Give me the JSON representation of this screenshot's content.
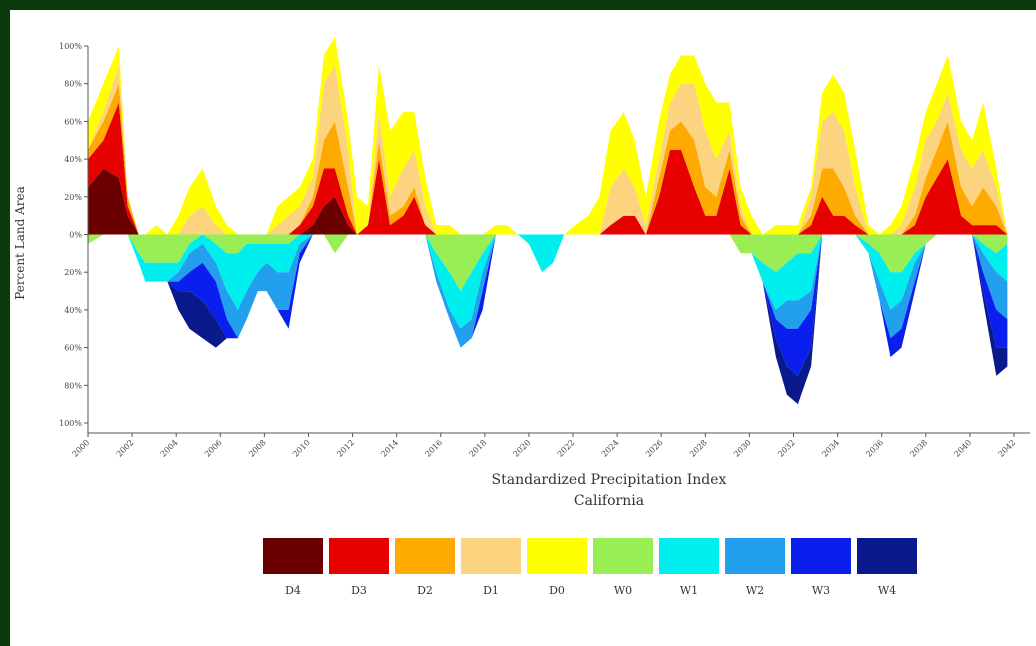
{
  "chart_data": {
    "type": "area",
    "title": "Standardized Precipitation Index",
    "subtitle": "California",
    "ylabel": "Percent Land Area",
    "xlabel": "",
    "ylim": [
      -100,
      100
    ],
    "grid": false,
    "y_ticks": [
      "100%",
      "80%",
      "60%",
      "40%",
      "20%",
      "0%",
      "20%",
      "40%",
      "60%",
      "80%",
      "100%"
    ],
    "x_tick_labels": [
      "2000",
      "2002",
      "2004",
      "2006",
      "2008",
      "2010",
      "2012",
      "2014",
      "2016",
      "2018",
      "2020",
      "2022",
      "2024",
      "2026",
      "2028",
      "2030",
      "2032",
      "2034",
      "2036",
      "2038",
      "2040",
      "2042"
    ],
    "x_range": [
      2000,
      2042.5
    ],
    "x": [
      2000,
      2000.7,
      2001.4,
      2001.8,
      2002.3,
      2002.6,
      2003.1,
      2003.6,
      2004.1,
      2004.6,
      2005.2,
      2005.8,
      2006.3,
      2006.8,
      2007.2,
      2007.7,
      2008.1,
      2008.6,
      2009.1,
      2009.6,
      2010.2,
      2010.7,
      2011.2,
      2011.8,
      2012.2,
      2012.7,
      2013.2,
      2013.7,
      2014.3,
      2014.8,
      2015.3,
      2015.8,
      2016.4,
      2016.9,
      2017.4,
      2017.9,
      2018.5,
      2019.0,
      2019.5,
      2020.0,
      2020.6,
      2021.1,
      2021.6,
      2022.1,
      2022.7,
      2023.2,
      2023.7,
      2024.3,
      2024.8,
      2025.3,
      2025.9,
      2026.4,
      2026.9,
      2027.5,
      2028.0,
      2028.5,
      2029.1,
      2029.6,
      2030.1,
      2030.6,
      2031.2,
      2031.7,
      2032.2,
      2032.8,
      2033.3,
      2033.8,
      2034.3,
      2034.8,
      2035.4,
      2035.9,
      2036.4,
      2036.9,
      2037.5,
      2038.0,
      2038.5,
      2039.0,
      2039.6,
      2040.1,
      2040.6,
      2041.2,
      2041.7
    ],
    "series": [
      {
        "name": "D4",
        "color": "#6b0000",
        "values": [
          25,
          35,
          30,
          10,
          0,
          0,
          0,
          0,
          0,
          0,
          0,
          0,
          0,
          0,
          0,
          0,
          0,
          0,
          0,
          0,
          5,
          15,
          20,
          5,
          0,
          0,
          0,
          0,
          0,
          0,
          0,
          0,
          0,
          0,
          0,
          0,
          0,
          0,
          0,
          0,
          0,
          0,
          0,
          0,
          0,
          0,
          0,
          0,
          0,
          0,
          0,
          0,
          0,
          0,
          0,
          0,
          0,
          0,
          0,
          0,
          0,
          0,
          0,
          0,
          0,
          0,
          0,
          0,
          0,
          0,
          0,
          0,
          0,
          0,
          0,
          0,
          0,
          0,
          0,
          0,
          0
        ]
      },
      {
        "name": "D3",
        "color": "#e60000",
        "values": [
          15,
          15,
          40,
          5,
          0,
          0,
          0,
          0,
          0,
          0,
          0,
          0,
          0,
          0,
          0,
          0,
          0,
          0,
          0,
          5,
          10,
          20,
          15,
          5,
          0,
          5,
          40,
          5,
          10,
          20,
          5,
          0,
          0,
          0,
          0,
          0,
          0,
          0,
          0,
          0,
          0,
          0,
          0,
          0,
          0,
          0,
          5,
          10,
          10,
          0,
          20,
          45,
          45,
          25,
          10,
          10,
          35,
          5,
          0,
          0,
          0,
          0,
          0,
          5,
          20,
          10,
          10,
          5,
          0,
          0,
          0,
          0,
          5,
          20,
          30,
          40,
          10,
          5,
          5,
          5,
          0
        ]
      },
      {
        "name": "D2",
        "color": "#ffaa00",
        "values": [
          5,
          10,
          10,
          5,
          0,
          0,
          0,
          0,
          0,
          0,
          0,
          0,
          0,
          0,
          0,
          0,
          0,
          0,
          0,
          0,
          5,
          15,
          25,
          15,
          0,
          0,
          10,
          5,
          5,
          5,
          0,
          0,
          0,
          0,
          0,
          0,
          0,
          0,
          0,
          0,
          0,
          0,
          0,
          0,
          0,
          0,
          0,
          0,
          0,
          0,
          10,
          10,
          15,
          25,
          15,
          10,
          10,
          5,
          0,
          0,
          0,
          0,
          0,
          5,
          15,
          25,
          15,
          5,
          0,
          0,
          0,
          0,
          5,
          10,
          15,
          20,
          15,
          10,
          20,
          10,
          0
        ]
      },
      {
        "name": "D1",
        "color": "#fcd37f",
        "values": [
          0,
          5,
          10,
          0,
          0,
          0,
          0,
          0,
          0,
          10,
          15,
          5,
          0,
          0,
          0,
          0,
          0,
          5,
          10,
          10,
          10,
          30,
          30,
          20,
          0,
          0,
          15,
          10,
          20,
          20,
          10,
          0,
          0,
          0,
          0,
          0,
          0,
          0,
          0,
          0,
          0,
          0,
          0,
          0,
          0,
          0,
          20,
          25,
          15,
          5,
          10,
          15,
          20,
          30,
          30,
          20,
          10,
          5,
          0,
          0,
          0,
          0,
          0,
          10,
          25,
          30,
          30,
          15,
          0,
          0,
          0,
          5,
          15,
          20,
          15,
          15,
          20,
          20,
          20,
          10,
          0
        ]
      },
      {
        "name": "D0",
        "color": "#ffff00",
        "values": [
          15,
          15,
          10,
          0,
          0,
          0,
          5,
          0,
          10,
          15,
          20,
          10,
          5,
          0,
          0,
          0,
          0,
          10,
          10,
          10,
          10,
          15,
          15,
          15,
          20,
          10,
          25,
          35,
          30,
          20,
          15,
          5,
          5,
          0,
          0,
          0,
          5,
          5,
          0,
          0,
          0,
          0,
          0,
          5,
          10,
          20,
          30,
          30,
          25,
          15,
          20,
          15,
          15,
          15,
          25,
          30,
          15,
          10,
          10,
          0,
          5,
          5,
          5,
          5,
          15,
          20,
          20,
          20,
          5,
          0,
          5,
          10,
          15,
          15,
          20,
          20,
          15,
          15,
          25,
          10,
          0
        ]
      },
      {
        "name": "W0",
        "color": "#99ee55",
        "values": [
          -5,
          0,
          0,
          0,
          -10,
          -15,
          -15,
          -15,
          -15,
          -5,
          0,
          -5,
          -10,
          -10,
          -5,
          -5,
          -5,
          -5,
          -5,
          0,
          0,
          0,
          -10,
          0,
          0,
          0,
          0,
          0,
          0,
          0,
          0,
          -10,
          -20,
          -30,
          -20,
          -10,
          0,
          0,
          0,
          0,
          0,
          0,
          0,
          0,
          0,
          0,
          0,
          0,
          0,
          0,
          0,
          0,
          0,
          0,
          0,
          0,
          0,
          -10,
          -10,
          -15,
          -20,
          -15,
          -10,
          -10,
          0,
          0,
          0,
          0,
          -5,
          -10,
          -20,
          -20,
          -10,
          -5,
          0,
          0,
          0,
          0,
          -5,
          -10,
          -5
        ]
      },
      {
        "name": "W1",
        "color": "#00eeee",
        "values": [
          0,
          0,
          0,
          0,
          -5,
          -10,
          -10,
          -10,
          -5,
          -5,
          -5,
          -10,
          -20,
          -30,
          -25,
          -15,
          -10,
          -15,
          -15,
          -5,
          0,
          0,
          0,
          0,
          0,
          0,
          0,
          0,
          0,
          0,
          0,
          -10,
          -20,
          -20,
          -25,
          -10,
          0,
          0,
          0,
          -5,
          -20,
          -15,
          0,
          0,
          0,
          0,
          0,
          0,
          0,
          0,
          0,
          0,
          0,
          0,
          0,
          0,
          0,
          0,
          0,
          -10,
          -20,
          -20,
          -25,
          -20,
          0,
          0,
          0,
          0,
          -5,
          -15,
          -20,
          -15,
          -5,
          0,
          0,
          0,
          0,
          0,
          -5,
          -10,
          -20
        ]
      },
      {
        "name": "W2",
        "color": "#22a0ee",
        "values": [
          0,
          0,
          0,
          0,
          0,
          0,
          0,
          0,
          -5,
          -10,
          -10,
          -10,
          -15,
          -15,
          -15,
          -10,
          -15,
          -20,
          -20,
          -5,
          0,
          0,
          0,
          0,
          0,
          0,
          0,
          0,
          0,
          0,
          0,
          -5,
          -5,
          -10,
          -10,
          -10,
          0,
          0,
          0,
          0,
          0,
          0,
          0,
          0,
          0,
          0,
          0,
          0,
          0,
          0,
          0,
          0,
          0,
          0,
          0,
          0,
          0,
          0,
          0,
          0,
          -5,
          -15,
          -15,
          -10,
          0,
          0,
          0,
          0,
          0,
          -10,
          -15,
          -15,
          -10,
          0,
          0,
          0,
          0,
          0,
          -10,
          -20,
          -20
        ]
      },
      {
        "name": "W3",
        "color": "#0a1eee",
        "values": [
          0,
          0,
          0,
          0,
          0,
          0,
          0,
          0,
          -5,
          -10,
          -20,
          -20,
          -10,
          0,
          0,
          0,
          0,
          0,
          -10,
          -5,
          0,
          0,
          0,
          0,
          0,
          0,
          0,
          0,
          0,
          0,
          0,
          0,
          0,
          0,
          0,
          -10,
          0,
          0,
          0,
          0,
          0,
          0,
          0,
          0,
          0,
          0,
          0,
          0,
          0,
          0,
          0,
          0,
          0,
          0,
          0,
          0,
          0,
          0,
          0,
          0,
          -10,
          -20,
          -25,
          -20,
          0,
          0,
          0,
          0,
          0,
          0,
          -10,
          -10,
          -5,
          0,
          0,
          0,
          0,
          0,
          -10,
          -20,
          -15
        ]
      },
      {
        "name": "W4",
        "color": "#0a1a8c",
        "values": [
          0,
          0,
          0,
          0,
          0,
          0,
          0,
          0,
          -10,
          -20,
          -20,
          -15,
          0,
          0,
          0,
          0,
          0,
          0,
          0,
          0,
          0,
          0,
          0,
          0,
          0,
          0,
          0,
          0,
          0,
          0,
          0,
          0,
          0,
          0,
          0,
          0,
          0,
          0,
          0,
          0,
          0,
          0,
          0,
          0,
          0,
          0,
          0,
          0,
          0,
          0,
          0,
          0,
          0,
          0,
          0,
          0,
          0,
          0,
          0,
          0,
          -10,
          -15,
          -15,
          -10,
          0,
          0,
          0,
          0,
          0,
          0,
          0,
          0,
          0,
          0,
          0,
          0,
          0,
          0,
          -5,
          -15,
          -10
        ]
      }
    ],
    "legend": {
      "placement": "bottom",
      "items": [
        {
          "label": "D4",
          "color": "#6b0000"
        },
        {
          "label": "D3",
          "color": "#e60000"
        },
        {
          "label": "D2",
          "color": "#ffaa00"
        },
        {
          "label": "D1",
          "color": "#fcd37f"
        },
        {
          "label": "D0",
          "color": "#ffff00"
        },
        {
          "label": "W0",
          "color": "#99ee55"
        },
        {
          "label": "W1",
          "color": "#00eeee"
        },
        {
          "label": "W2",
          "color": "#22a0ee"
        },
        {
          "label": "W3",
          "color": "#0a1eee"
        },
        {
          "label": "W4",
          "color": "#0a1a8c"
        }
      ]
    }
  },
  "colors": {
    "frame": "#0d3a0d",
    "background": "#ffffff"
  }
}
